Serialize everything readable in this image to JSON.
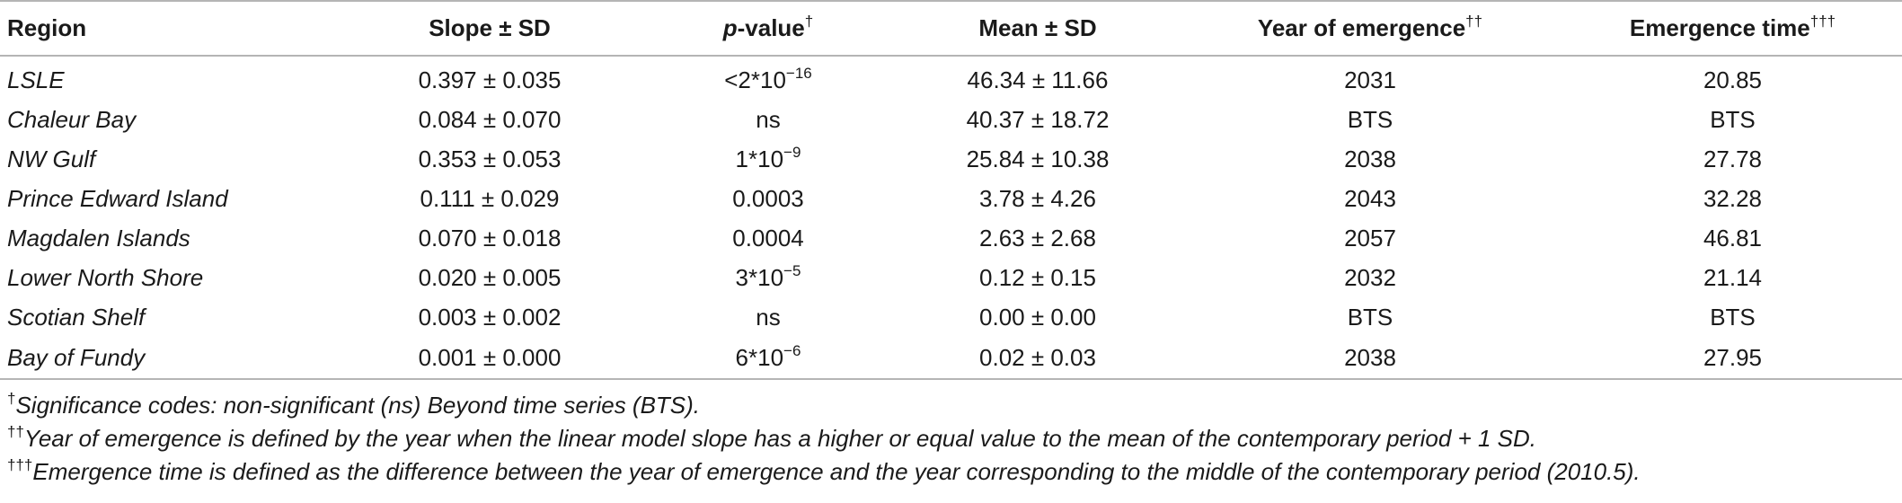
{
  "table": {
    "headers": {
      "region": "Region",
      "slope": "Slope ± SD",
      "pvalue_italic": "p",
      "pvalue_rest": "-value",
      "pvalue_sup": "†",
      "mean": "Mean ± SD",
      "year": "Year of emergence",
      "year_sup": "††",
      "time": "Emergence time",
      "time_sup": "†††"
    },
    "rows": [
      {
        "region": "LSLE",
        "slope": "0.397 ± 0.035",
        "p_base": "<2*10",
        "p_exp": "−16",
        "mean": "46.34 ± 11.66",
        "year": "2031",
        "time": "20.85"
      },
      {
        "region": "Chaleur Bay",
        "slope": "0.084 ± 0.070",
        "p_base": "ns",
        "p_exp": "",
        "mean": "40.37 ± 18.72",
        "year": "BTS",
        "time": "BTS"
      },
      {
        "region": "NW Gulf",
        "slope": "0.353 ± 0.053",
        "p_base": "1*10",
        "p_exp": "−9",
        "mean": "25.84 ± 10.38",
        "year": "2038",
        "time": "27.78"
      },
      {
        "region": "Prince Edward Island",
        "slope": "0.111 ± 0.029",
        "p_base": "0.0003",
        "p_exp": "",
        "mean": "3.78 ± 4.26",
        "year": "2043",
        "time": "32.28"
      },
      {
        "region": "Magdalen Islands",
        "slope": "0.070 ± 0.018",
        "p_base": "0.0004",
        "p_exp": "",
        "mean": "2.63 ± 2.68",
        "year": "2057",
        "time": "46.81"
      },
      {
        "region": "Lower North Shore",
        "slope": "0.020 ± 0.005",
        "p_base": "3*10",
        "p_exp": "−5",
        "mean": "0.12 ± 0.15",
        "year": "2032",
        "time": "21.14"
      },
      {
        "region": "Scotian Shelf",
        "slope": "0.003 ± 0.002",
        "p_base": "ns",
        "p_exp": "",
        "mean": "0.00 ± 0.00",
        "year": "BTS",
        "time": "BTS"
      },
      {
        "region": "Bay of Fundy",
        "slope": "0.001 ± 0.000",
        "p_base": "6*10",
        "p_exp": "−6",
        "mean": "0.02 ± 0.03",
        "year": "2038",
        "time": "27.95"
      }
    ]
  },
  "footnotes": [
    {
      "mark": "†",
      "text": "Significance codes: non-significant (ns) Beyond time series (BTS)."
    },
    {
      "mark": "††",
      "text": "Year of emergence is defined by the year when the linear model slope has a higher or equal value to the mean of the contemporary period + 1 SD."
    },
    {
      "mark": "†††",
      "text": "Emergence time is defined as the difference between the year of emergence and the year corresponding to the middle of the contemporary period (2010.5)."
    }
  ]
}
